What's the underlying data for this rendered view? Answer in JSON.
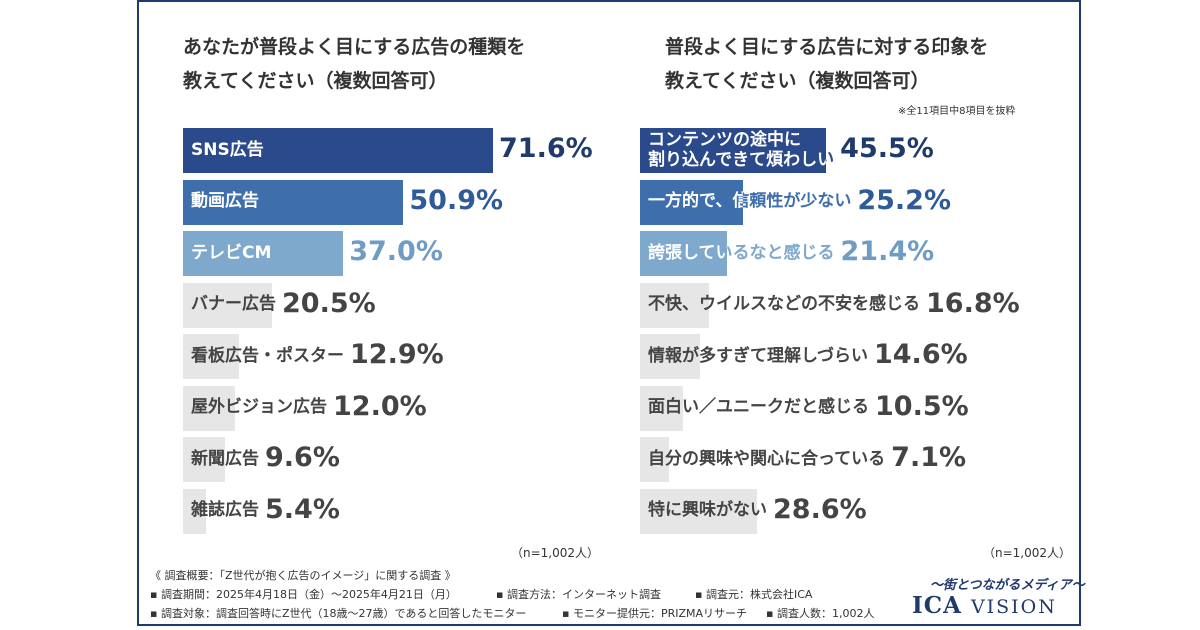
{
  "left_title": {
    "line1": "あなたが普段よく目にする広告の種類を",
    "line2": "教えてください（複数回答可）"
  },
  "right_title": {
    "line1": "普段よく目にする広告に対する印象を",
    "line2": "教えてください（複数回答可）"
  },
  "right_note": "※全11項目中8項目を抜粋",
  "left_n": "（n=1,002人）",
  "right_n": "（n=1,002人）",
  "chart_data": [
    {
      "type": "bar",
      "orientation": "horizontal",
      "title": "あなたが普段よく目にする広告の種類を教えてください（複数回答可）",
      "categories": [
        "SNS広告",
        "動画広告",
        "テレビCM",
        "バナー広告",
        "看板広告・ポスター",
        "屋外ビジョン広告",
        "新聞広告",
        "雑誌広告"
      ],
      "values": [
        71.6,
        50.9,
        37.0,
        20.5,
        12.9,
        12.0,
        9.6,
        5.4
      ],
      "value_labels": [
        "71.6%",
        "50.9%",
        "37.0%",
        "20.5%",
        "12.9%",
        "12.0%",
        "9.6%",
        "5.4%"
      ],
      "xlim": [
        0,
        100
      ],
      "colors": [
        "#2b4a8b",
        "#3f6ead",
        "#7ea8cc",
        "#e6e6e6",
        "#e6e6e6",
        "#e6e6e6",
        "#e6e6e6",
        "#e6e6e6"
      ]
    },
    {
      "type": "bar",
      "orientation": "horizontal",
      "title": "普段よく目にする広告に対する印象を教えてください（複数回答可）",
      "categories": [
        "コンテンツの途中に\n割り込んできて煩わしい",
        "一方的で、信頼性が少ない",
        "誇張しているなと感じる",
        "不快、ウイルスなどの不安を感じる",
        "情報が多すぎて理解しづらい",
        "面白い／ユニークだと感じる",
        "自分の興味や関心に合っている",
        "特に興味がない"
      ],
      "values": [
        45.5,
        25.2,
        21.4,
        16.8,
        14.6,
        10.5,
        7.1,
        28.6
      ],
      "value_labels": [
        "45.5%",
        "25.2%",
        "21.4%",
        "16.8%",
        "14.6%",
        "10.5%",
        "7.1%",
        "28.6%"
      ],
      "xlim": [
        0,
        100
      ],
      "colors": [
        "#2b4a8b",
        "#3f6ead",
        "#7ea8cc",
        "#e6e6e6",
        "#e6e6e6",
        "#e6e6e6",
        "#e6e6e6",
        "#e6e6e6"
      ]
    }
  ],
  "footer": {
    "line1": "《 調査概要：「Z世代が抱く広告のイメージ」に関する調査 》",
    "line2a": "▪ 調査期間：2025年4月18日（金）～2025年4月21日（月）",
    "line2b": "▪ 調査方法：インターネット調査",
    "line2c": "▪ 調査元：株式会社ICA",
    "line3a": "▪ 調査対象：調査回答時にZ世代（18歳～27歳）であると回答したモニター",
    "line3b": "▪ モニター提供元：PRIZMAリサーチ",
    "line3c": "▪ 調査人数：1,002人"
  },
  "brand": {
    "tagline": "～街とつながるメディア～",
    "logo_main": "ICA",
    "logo_sub": "VISION"
  }
}
